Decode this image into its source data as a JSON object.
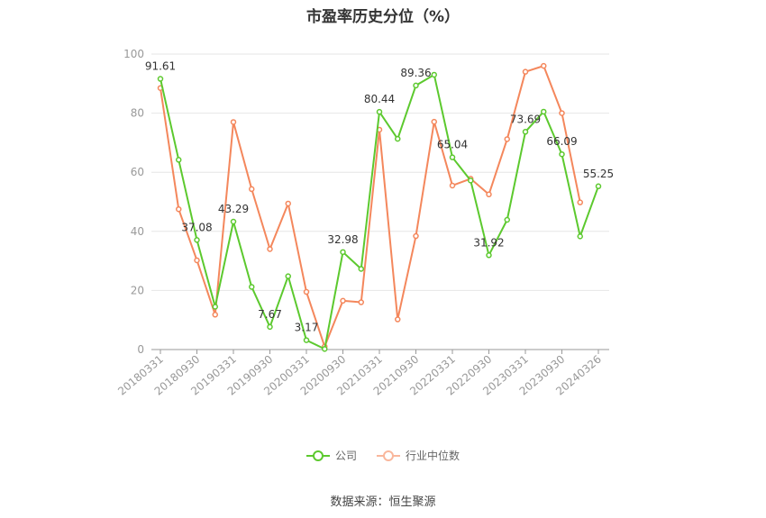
{
  "chart_data": {
    "type": "line",
    "title": "市盈率历史分位（%）",
    "x_tick_labels": [
      "20180331",
      "20180930",
      "20190331",
      "20190930",
      "20200331",
      "20200930",
      "20210331",
      "20210930",
      "20220331",
      "20220930",
      "20230331",
      "20230930",
      "20240326"
    ],
    "ylim": [
      0,
      100
    ],
    "y_ticks": [
      0,
      20,
      40,
      60,
      80,
      100
    ],
    "grid": true,
    "legend_position": "bottom",
    "series": [
      {
        "name": "公司",
        "color": "#5cc92e",
        "values": [
          91.61,
          64.2,
          37.08,
          14.5,
          43.29,
          21.2,
          7.67,
          24.8,
          3.17,
          0.2,
          32.98,
          27.3,
          80.44,
          71.3,
          89.36,
          93.0,
          65.04,
          57.2,
          31.92,
          43.9,
          73.69,
          80.5,
          66.09,
          38.3,
          55.25
        ],
        "labels": {
          "0": "91.61",
          "2": "37.08",
          "4": "43.29",
          "6": "7.67",
          "8": "3.17",
          "10": "32.98",
          "12": "80.44",
          "14": "89.36",
          "16": "65.04",
          "18": "31.92",
          "20": "73.69",
          "22": "66.09",
          "24": "55.25"
        }
      },
      {
        "name": "行业中位数",
        "color": "#f4875c",
        "values": [
          88.5,
          47.5,
          30.2,
          11.8,
          77.0,
          54.3,
          34.0,
          49.4,
          19.5,
          1.0,
          16.5,
          16.0,
          74.4,
          10.2,
          38.4,
          77.1,
          55.5,
          57.8,
          52.5,
          71.2,
          94.0,
          96.0,
          80.0,
          49.8,
          null
        ]
      }
    ]
  },
  "source_text": "数据来源：恒生聚源"
}
